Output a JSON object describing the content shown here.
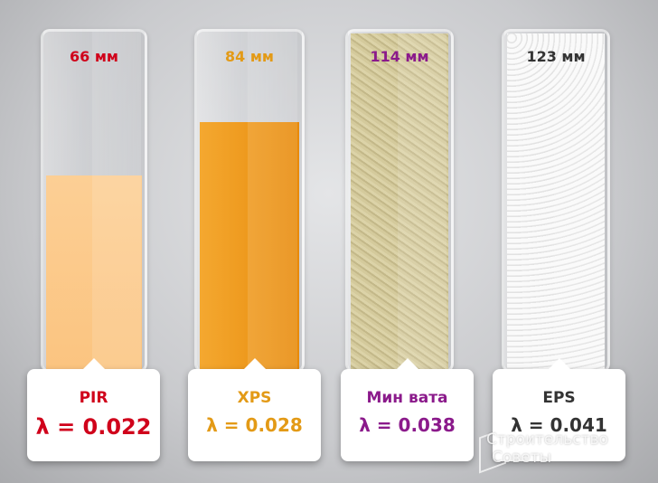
{
  "chart_data": {
    "type": "bar",
    "categories": [
      "PIR",
      "XPS",
      "Мин вата",
      "EPS"
    ],
    "values": [
      66,
      84,
      114,
      123
    ],
    "unit": "мм",
    "value_labels": [
      "66 мм",
      "84 мм",
      "114 мм",
      "123 мм"
    ],
    "lambda_labels": [
      "λ = 0.022",
      "λ = 0.028",
      "λ = 0.038",
      "λ = 0.041"
    ],
    "lambda": [
      0.022,
      0.028,
      0.038,
      0.041
    ],
    "colors": [
      "#d0021b",
      "#e39a16",
      "#8b1a8b",
      "#333333"
    ],
    "fills": [
      "#fcc98a",
      "#ef9a1c",
      "#cfc596",
      "#f1f1f1"
    ]
  },
  "watermark": {
    "line1": "Строительство",
    "line2": "Советы"
  }
}
